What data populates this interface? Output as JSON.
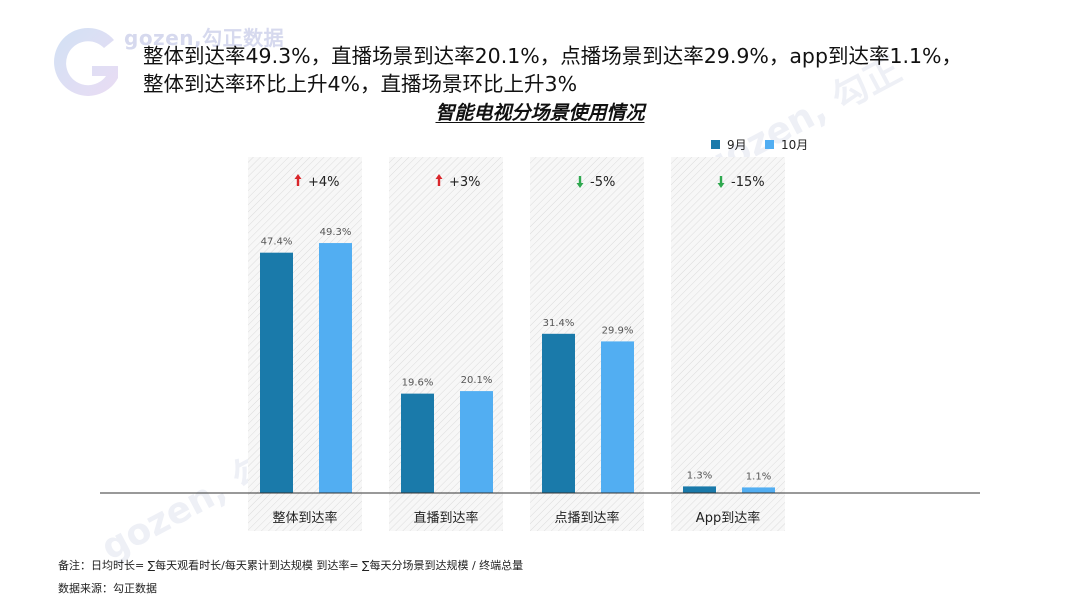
{
  "brand": {
    "watermark": "gozen,勾正数据",
    "watermark_bottom": "gozen, 勾正"
  },
  "headline": {
    "line1": "整体到达率49.3%，直播场景到达率20.1%，点播场景到达率29.9%，app到达率1.1%，",
    "line2": "整体到达率环比上升4%，直播场景环比上升3%"
  },
  "chart_data": {
    "type": "bar",
    "title": "智能电视分场景使用情况",
    "categories": [
      "整体到达率",
      "直播到达率",
      "点播到达率",
      "App到达率"
    ],
    "series": [
      {
        "name": "9月",
        "values": [
          47.4,
          19.6,
          31.4,
          1.3
        ],
        "labels": [
          "47.4%",
          "19.6%",
          "31.4%",
          "1.3%"
        ],
        "color": "#1a7aaa"
      },
      {
        "name": "10月",
        "values": [
          49.3,
          20.1,
          29.9,
          1.1
        ],
        "labels": [
          "49.3%",
          "20.1%",
          "29.9%",
          "1.1%"
        ],
        "color": "#52aef2"
      }
    ],
    "changes": [
      {
        "text": "+4%",
        "direction": "up"
      },
      {
        "text": "+3%",
        "direction": "up"
      },
      {
        "text": "-5%",
        "direction": "down"
      },
      {
        "text": "-15%",
        "direction": "down"
      }
    ],
    "ylim": [
      0,
      60
    ],
    "legend_position": "top-right",
    "up_color": "#d9262b",
    "down_color": "#2fa84f"
  },
  "notes": {
    "remark": "备注：日均时长= ∑每天观看时长/每天累计到达规模    到达率= ∑每天分场景到达规模 / 终端总量",
    "source": "数据来源：勾正数据"
  }
}
